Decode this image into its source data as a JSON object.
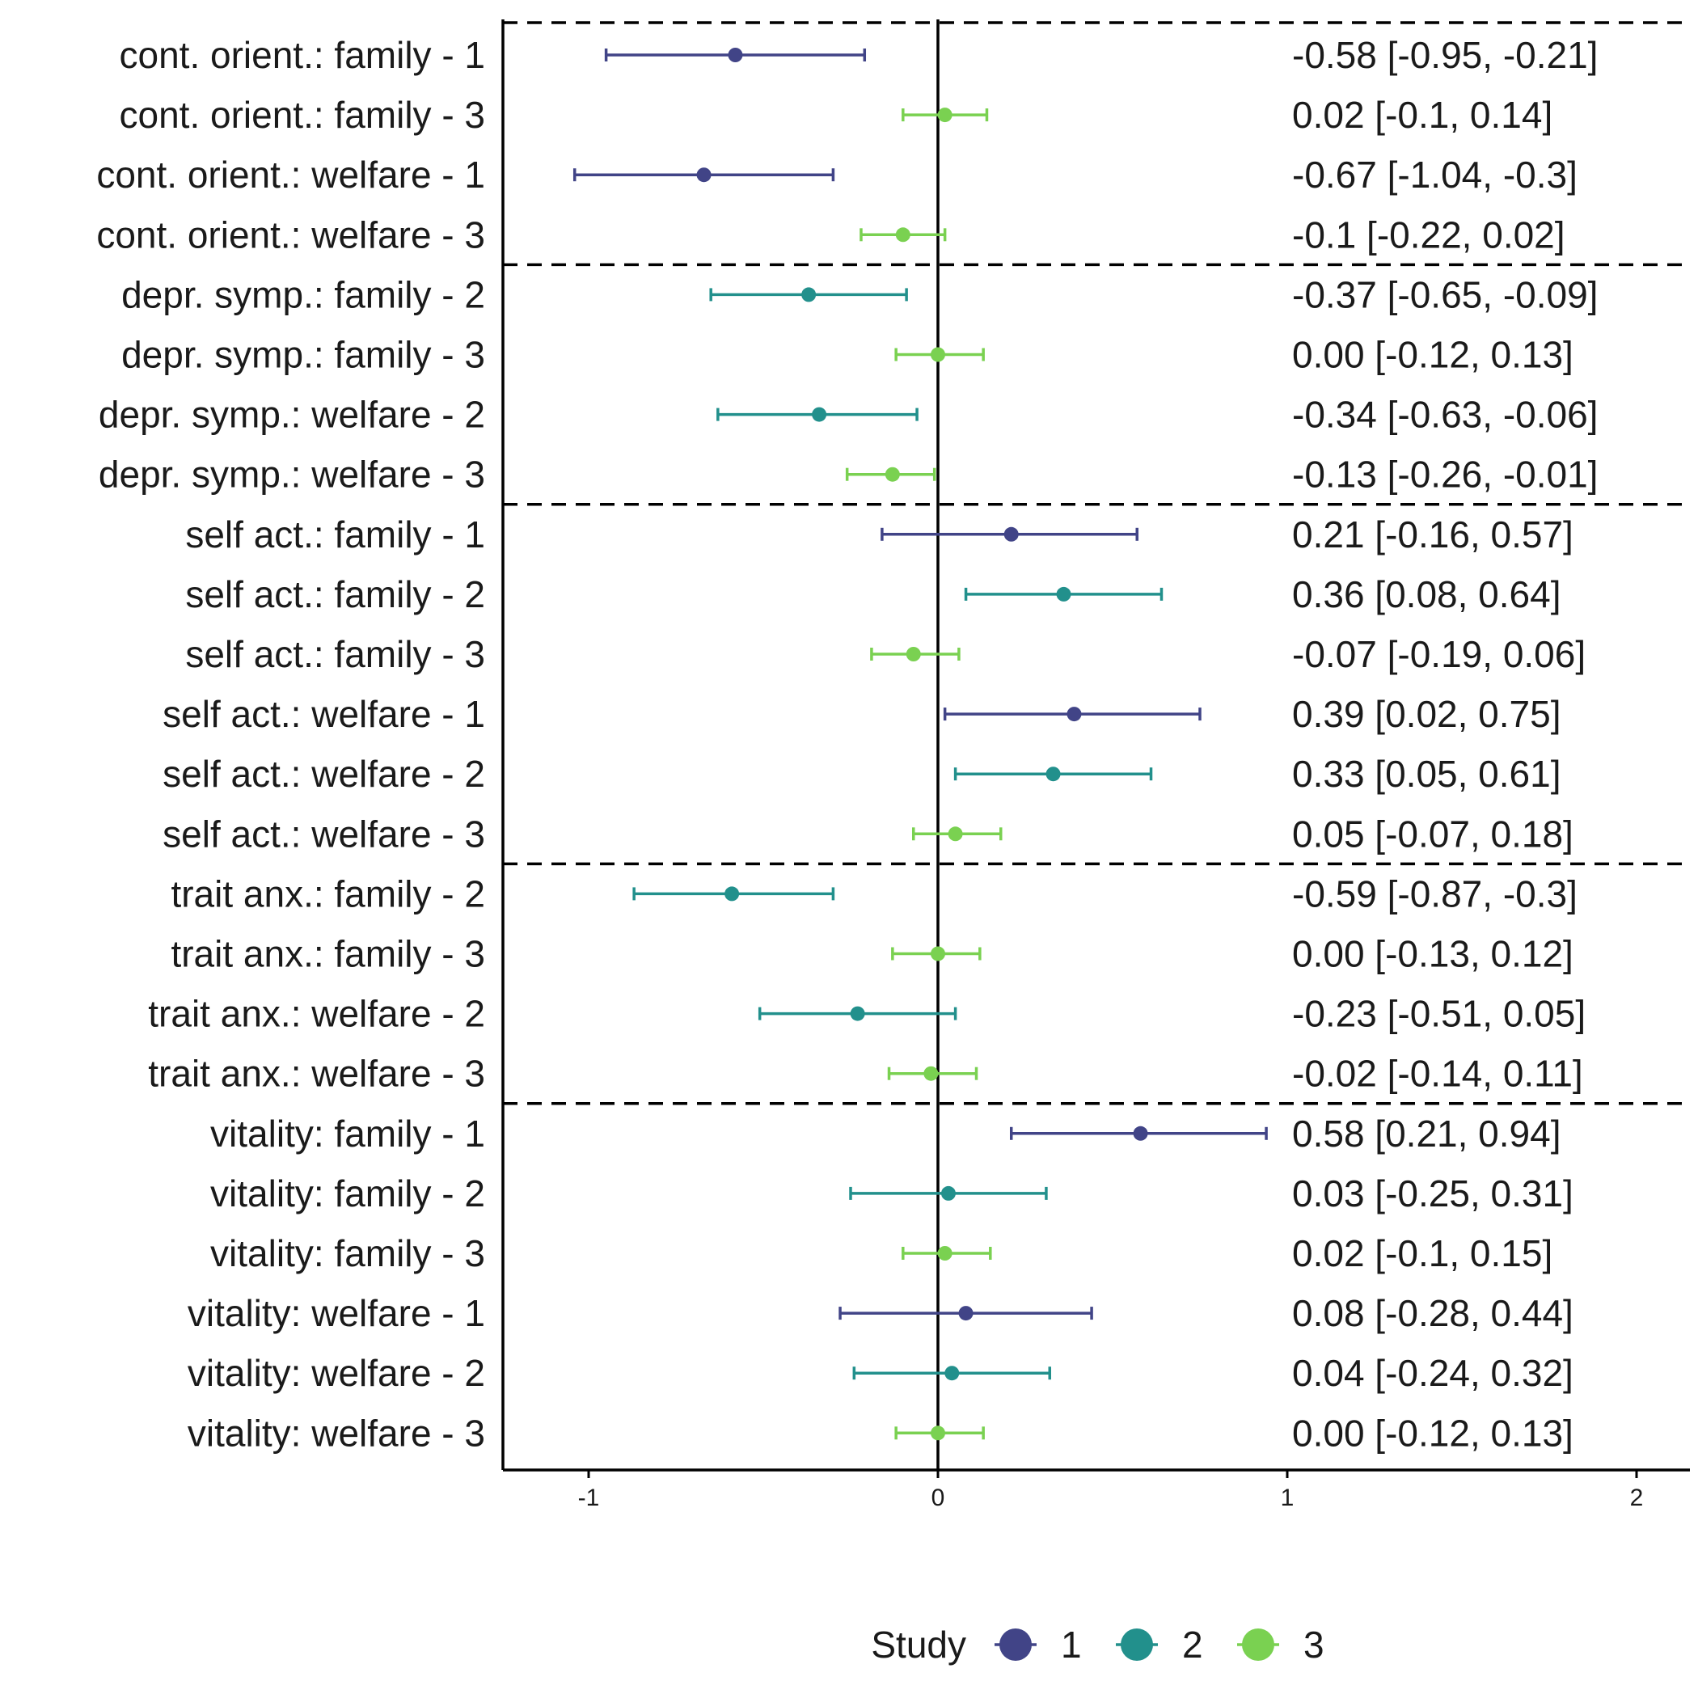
{
  "chart_data": {
    "type": "forest",
    "xlim": [
      -1.25,
      2.15
    ],
    "x_ticks": [
      -1,
      0,
      1,
      2
    ],
    "x_tick_labels": [
      "-1",
      "0",
      "1",
      "2"
    ],
    "reference_line": 0,
    "group_separators_after_row": [
      4,
      8,
      14,
      18
    ],
    "legend": {
      "title": "Study",
      "placement": "bottom",
      "entries": [
        {
          "label": "1",
          "study": 1
        },
        {
          "label": "2",
          "study": 2
        },
        {
          "label": "3",
          "study": 3
        }
      ]
    },
    "study_colors": {
      "1": "#414487",
      "2": "#22908C",
      "3": "#7AD151"
    },
    "rows": [
      {
        "label": "cont. orient.: family - 1",
        "study": 1,
        "estimate": -0.58,
        "lower": -0.95,
        "upper": -0.21,
        "text": "-0.58 [-0.95, -0.21]"
      },
      {
        "label": "cont. orient.: family - 3",
        "study": 3,
        "estimate": 0.02,
        "lower": -0.1,
        "upper": 0.14,
        "text": "0.02 [-0.1, 0.14]"
      },
      {
        "label": "cont. orient.: welfare - 1",
        "study": 1,
        "estimate": -0.67,
        "lower": -1.04,
        "upper": -0.3,
        "text": "-0.67 [-1.04, -0.3]"
      },
      {
        "label": "cont. orient.: welfare - 3",
        "study": 3,
        "estimate": -0.1,
        "lower": -0.22,
        "upper": 0.02,
        "text": "-0.1 [-0.22, 0.02]"
      },
      {
        "label": "depr. symp.: family - 2",
        "study": 2,
        "estimate": -0.37,
        "lower": -0.65,
        "upper": -0.09,
        "text": "-0.37 [-0.65, -0.09]"
      },
      {
        "label": "depr. symp.: family - 3",
        "study": 3,
        "estimate": 0.0,
        "lower": -0.12,
        "upper": 0.13,
        "text": "0.00 [-0.12, 0.13]"
      },
      {
        "label": "depr. symp.: welfare - 2",
        "study": 2,
        "estimate": -0.34,
        "lower": -0.63,
        "upper": -0.06,
        "text": "-0.34 [-0.63, -0.06]"
      },
      {
        "label": "depr. symp.: welfare - 3",
        "study": 3,
        "estimate": -0.13,
        "lower": -0.26,
        "upper": -0.01,
        "text": "-0.13 [-0.26, -0.01]"
      },
      {
        "label": "self act.: family - 1",
        "study": 1,
        "estimate": 0.21,
        "lower": -0.16,
        "upper": 0.57,
        "text": "0.21 [-0.16, 0.57]"
      },
      {
        "label": "self act.: family - 2",
        "study": 2,
        "estimate": 0.36,
        "lower": 0.08,
        "upper": 0.64,
        "text": "0.36 [0.08, 0.64]"
      },
      {
        "label": "self act.: family - 3",
        "study": 3,
        "estimate": -0.07,
        "lower": -0.19,
        "upper": 0.06,
        "text": "-0.07 [-0.19, 0.06]"
      },
      {
        "label": "self act.: welfare - 1",
        "study": 1,
        "estimate": 0.39,
        "lower": 0.02,
        "upper": 0.75,
        "text": "0.39 [0.02, 0.75]"
      },
      {
        "label": "self act.: welfare - 2",
        "study": 2,
        "estimate": 0.33,
        "lower": 0.05,
        "upper": 0.61,
        "text": "0.33 [0.05, 0.61]"
      },
      {
        "label": "self act.: welfare - 3",
        "study": 3,
        "estimate": 0.05,
        "lower": -0.07,
        "upper": 0.18,
        "text": "0.05 [-0.07, 0.18]"
      },
      {
        "label": "trait anx.: family - 2",
        "study": 2,
        "estimate": -0.59,
        "lower": -0.87,
        "upper": -0.3,
        "text": "-0.59 [-0.87, -0.3]"
      },
      {
        "label": "trait anx.: family - 3",
        "study": 3,
        "estimate": 0.0,
        "lower": -0.13,
        "upper": 0.12,
        "text": "0.00 [-0.13, 0.12]"
      },
      {
        "label": "trait anx.: welfare - 2",
        "study": 2,
        "estimate": -0.23,
        "lower": -0.51,
        "upper": 0.05,
        "text": "-0.23 [-0.51, 0.05]"
      },
      {
        "label": "trait anx.: welfare - 3",
        "study": 3,
        "estimate": -0.02,
        "lower": -0.14,
        "upper": 0.11,
        "text": "-0.02 [-0.14, 0.11]"
      },
      {
        "label": "vitality: family - 1",
        "study": 1,
        "estimate": 0.58,
        "lower": 0.21,
        "upper": 0.94,
        "text": "0.58 [0.21, 0.94]"
      },
      {
        "label": "vitality: family - 2",
        "study": 2,
        "estimate": 0.03,
        "lower": -0.25,
        "upper": 0.31,
        "text": "0.03 [-0.25, 0.31]"
      },
      {
        "label": "vitality: family - 3",
        "study": 3,
        "estimate": 0.02,
        "lower": -0.1,
        "upper": 0.15,
        "text": "0.02 [-0.1, 0.15]"
      },
      {
        "label": "vitality: welfare - 1",
        "study": 1,
        "estimate": 0.08,
        "lower": -0.28,
        "upper": 0.44,
        "text": "0.08 [-0.28, 0.44]"
      },
      {
        "label": "vitality: welfare - 2",
        "study": 2,
        "estimate": 0.04,
        "lower": -0.24,
        "upper": 0.32,
        "text": "0.04 [-0.24, 0.32]"
      },
      {
        "label": "vitality: welfare - 3",
        "study": 3,
        "estimate": 0.0,
        "lower": -0.12,
        "upper": 0.13,
        "text": "0.00 [-0.12, 0.13]"
      }
    ]
  }
}
